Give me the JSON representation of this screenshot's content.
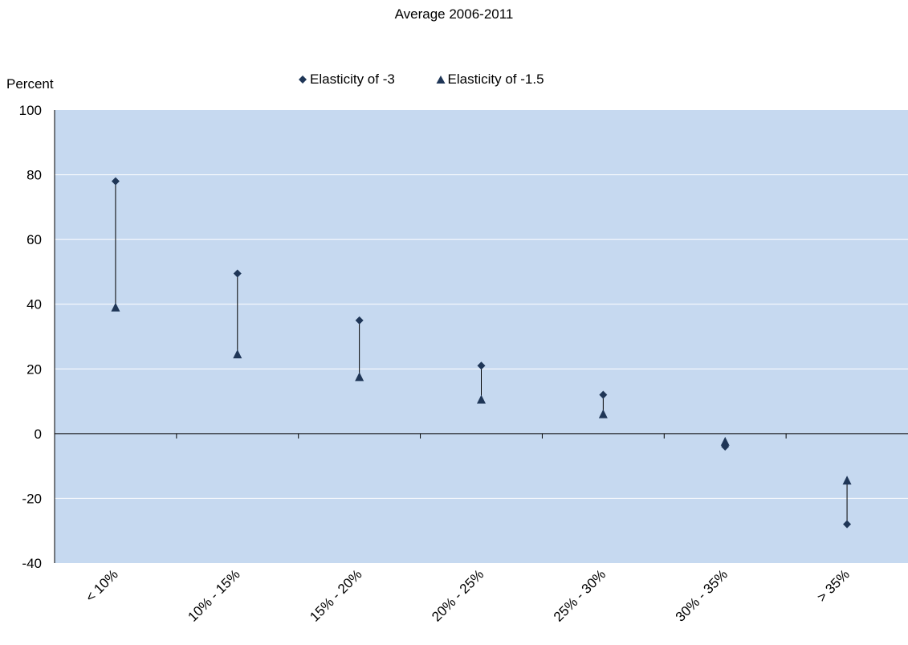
{
  "chart_data": {
    "type": "scatter",
    "title": "Average 2006-2011",
    "ylabel": "Percent",
    "xlabel": "",
    "ylim": [
      -40,
      100
    ],
    "yticks": [
      -40,
      -20,
      0,
      20,
      40,
      60,
      80,
      100
    ],
    "categories": [
      "< 10%",
      "10% - 15%",
      "15% - 20%",
      "20% - 25%",
      "25% - 30%",
      "30% - 35%",
      "> 35%"
    ],
    "series": [
      {
        "name": "Elasticity of -3",
        "marker": "diamond",
        "values": [
          78,
          49.5,
          35,
          21,
          12,
          -4,
          -28
        ]
      },
      {
        "name": "Elasticity of -1.5",
        "marker": "triangle",
        "values": [
          39,
          24.5,
          17.5,
          10.5,
          6,
          -2.5,
          -14.5
        ]
      }
    ],
    "grid": true,
    "legend_position": "top"
  },
  "colors": {
    "plot_background": "#c6d9f0",
    "marker": "#1f3657",
    "gridline": "#ffffff",
    "axis": "#000000"
  }
}
